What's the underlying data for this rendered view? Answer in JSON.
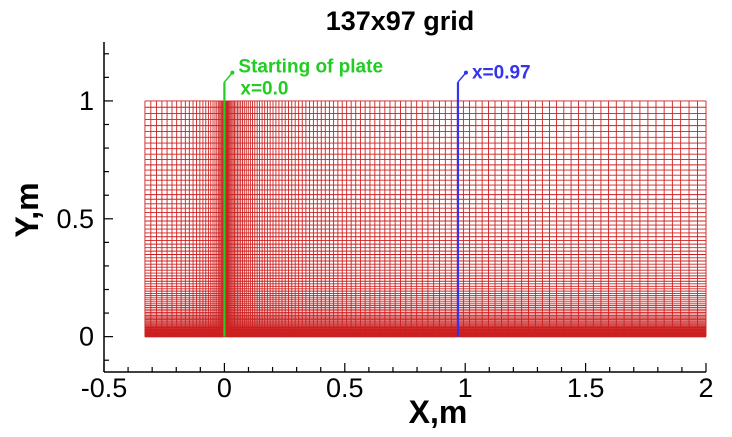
{
  "chart_data": {
    "type": "grid",
    "title": "137x97 grid",
    "xlabel": "X,m",
    "ylabel": "Y,m",
    "xlim": [
      -0.5,
      2.0
    ],
    "ylim": [
      -0.15,
      1.25
    ],
    "x_ticks": [
      -0.5,
      0,
      0.5,
      1,
      1.5,
      2
    ],
    "x_tick_labels": [
      "-0.5",
      "0",
      "0.5",
      "1",
      "1.5",
      "2"
    ],
    "y_ticks": [
      0,
      0.5,
      1
    ],
    "y_tick_labels": [
      "0",
      "0.5",
      "1"
    ],
    "mesh": {
      "nx": 137,
      "ny": 97,
      "x_start": -0.33,
      "x_end": 2.0,
      "y_start": 0.0,
      "y_end": 1.0,
      "color": "#cc2020"
    },
    "markers": [
      {
        "x": 0.0,
        "y_top": 1.1,
        "color": "#22cc22",
        "label_line1": "Starting of plate",
        "label_line2": "x=0.0"
      },
      {
        "x": 0.97,
        "y_top": 1.1,
        "color": "#3333ee",
        "label_line1": "x=0.97",
        "label_line2": ""
      }
    ],
    "grid": false,
    "legend": "none"
  }
}
